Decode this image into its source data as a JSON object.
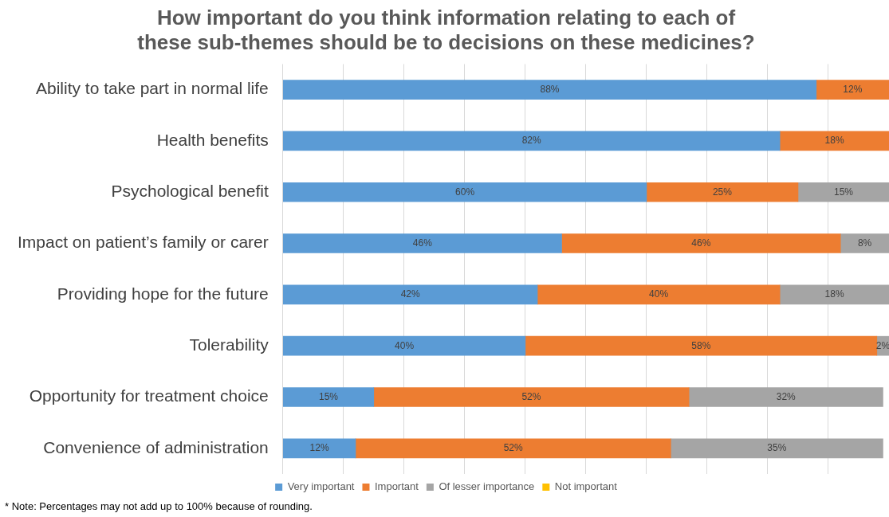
{
  "chart_data": {
    "type": "bar",
    "orientation": "horizontal",
    "stacked": true,
    "title": [
      "How important do you think information relating to each of",
      "these sub-themes should be to decisions on these medicines?"
    ],
    "categories": [
      "Ability to take part in normal life",
      "Health benefits",
      "Psychological benefit",
      "Impact on patient’s family or carer",
      "Providing hope for the future",
      "Tolerability",
      "Opportunity for treatment choice",
      "Convenience of administration"
    ],
    "series": [
      {
        "name": "Very important",
        "color": "#5b9bd5",
        "values": [
          88,
          82,
          60,
          46,
          42,
          40,
          15,
          12
        ],
        "value_labels": [
          "88%",
          "82%",
          "60%",
          "46%",
          "42%",
          "40%",
          "15%",
          "12%"
        ]
      },
      {
        "name": "Important",
        "color": "#ed7d31",
        "values": [
          12,
          18,
          25,
          46,
          40,
          58,
          52,
          52
        ],
        "value_labels": [
          "12%",
          "18%",
          "25%",
          "46%",
          "40%",
          "58%",
          "52%",
          "52%"
        ]
      },
      {
        "name": "Of lesser importance",
        "color": "#a5a5a5",
        "values": [
          null,
          null,
          15,
          8,
          18,
          2,
          32,
          35
        ],
        "value_labels": [
          null,
          null,
          "15%",
          "8%",
          "18%",
          "2%",
          "32%",
          "35%"
        ]
      },
      {
        "name": "Not important",
        "color": "#ffc000",
        "values": [
          null,
          null,
          null,
          null,
          null,
          null,
          null,
          null
        ]
      }
    ],
    "grid": "x",
    "tick_labels": "y",
    "legend": "bottom",
    "annotations": [
      "* Note: Percentages may not add up to 100% because of rounding."
    ]
  }
}
